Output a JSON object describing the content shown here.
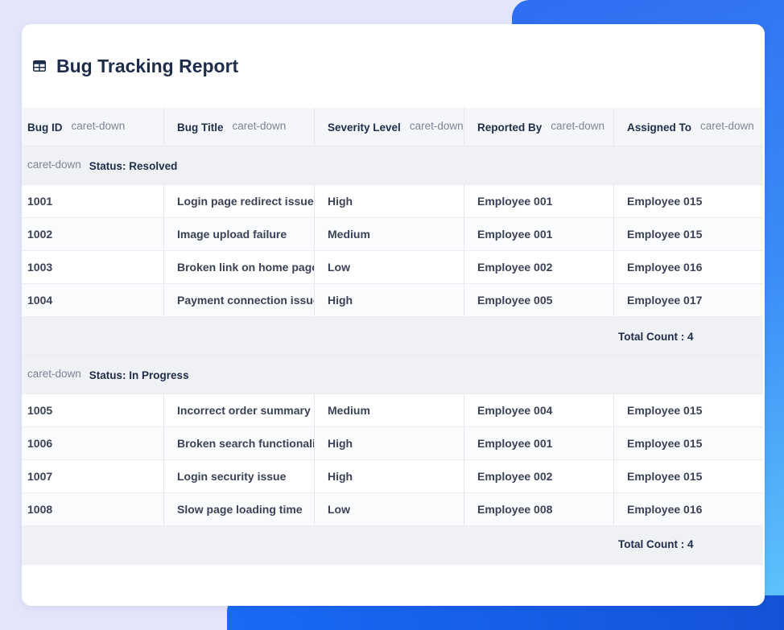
{
  "report": {
    "title": "Bug Tracking Report",
    "icon": "table-icon"
  },
  "columns": [
    {
      "label": "Bug ID",
      "menu": "caret-down"
    },
    {
      "label": "Bug Title",
      "menu": "caret-down"
    },
    {
      "label": "Severity Level",
      "menu": "caret-down"
    },
    {
      "label": "Reported By",
      "menu": "caret-down"
    },
    {
      "label": "Assigned To",
      "menu": "caret-down"
    }
  ],
  "groups": [
    {
      "toggle": "caret-down",
      "label": "Status: Resolved",
      "rows": [
        [
          "1001",
          "Login page redirect issue",
          "High",
          "Employee 001",
          "Employee 015"
        ],
        [
          "1002",
          "Image upload failure",
          "Medium",
          "Employee 001",
          "Employee 015"
        ],
        [
          "1003",
          "Broken link on home page",
          "Low",
          "Employee 002",
          "Employee 016"
        ],
        [
          "1004",
          "Payment connection issue",
          "High",
          "Employee 005",
          "Employee 017"
        ]
      ],
      "total": "Total Count : 4"
    },
    {
      "toggle": "caret-down",
      "label": "Status: In Progress",
      "rows": [
        [
          "1005",
          "Incorrect order summary",
          "Medium",
          "Employee 004",
          "Employee 015"
        ],
        [
          "1006",
          "Broken search functionality",
          "High",
          "Employee 001",
          "Employee 015"
        ],
        [
          "1007",
          "Login security issue",
          "High",
          "Employee 002",
          "Employee 015"
        ],
        [
          "1008",
          "Slow page loading time",
          "Low",
          "Employee 008",
          "Employee 016"
        ]
      ],
      "total": "Total Count : 4"
    }
  ]
}
